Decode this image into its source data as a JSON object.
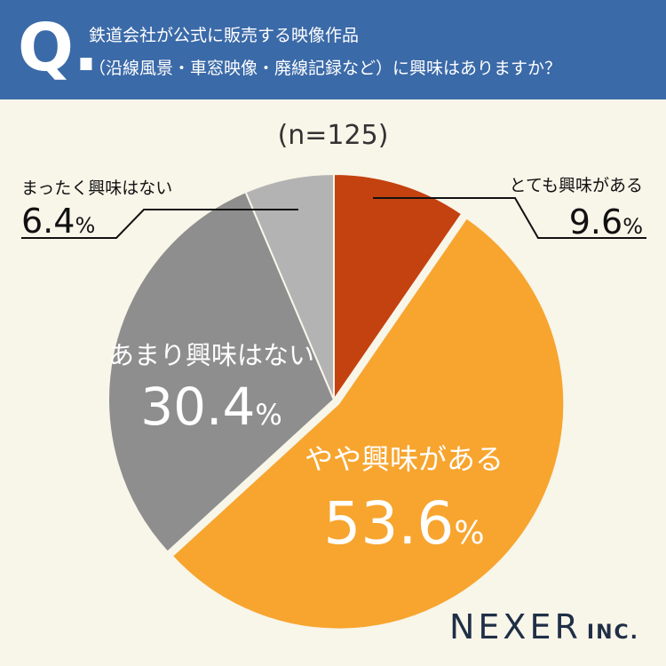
{
  "question": {
    "mark": "Q.",
    "line1": "鉄道会社が公式に販売する映像作品",
    "line2": "（沿線風景・車窓映像・廃線記録など）に興味はありますか？"
  },
  "logo": {
    "name": "NEXER",
    "suffix": "INC."
  },
  "colors": {
    "header_bg": "#3b6aa8",
    "background": "#f8f5e9"
  },
  "chart_data": {
    "type": "pie",
    "title": "(n=125)",
    "unit": "%",
    "slices": [
      {
        "label": "とても興味がある",
        "value": 9.6,
        "color": "#c4420f"
      },
      {
        "label": "やや興味がある",
        "value": 53.6,
        "color": "#f7a52f"
      },
      {
        "label": "あまり興味はない",
        "value": 30.4,
        "color": "#8e8e8e"
      },
      {
        "label": "まったく興味はない",
        "value": 6.4,
        "color": "#b3b3b3"
      }
    ]
  }
}
